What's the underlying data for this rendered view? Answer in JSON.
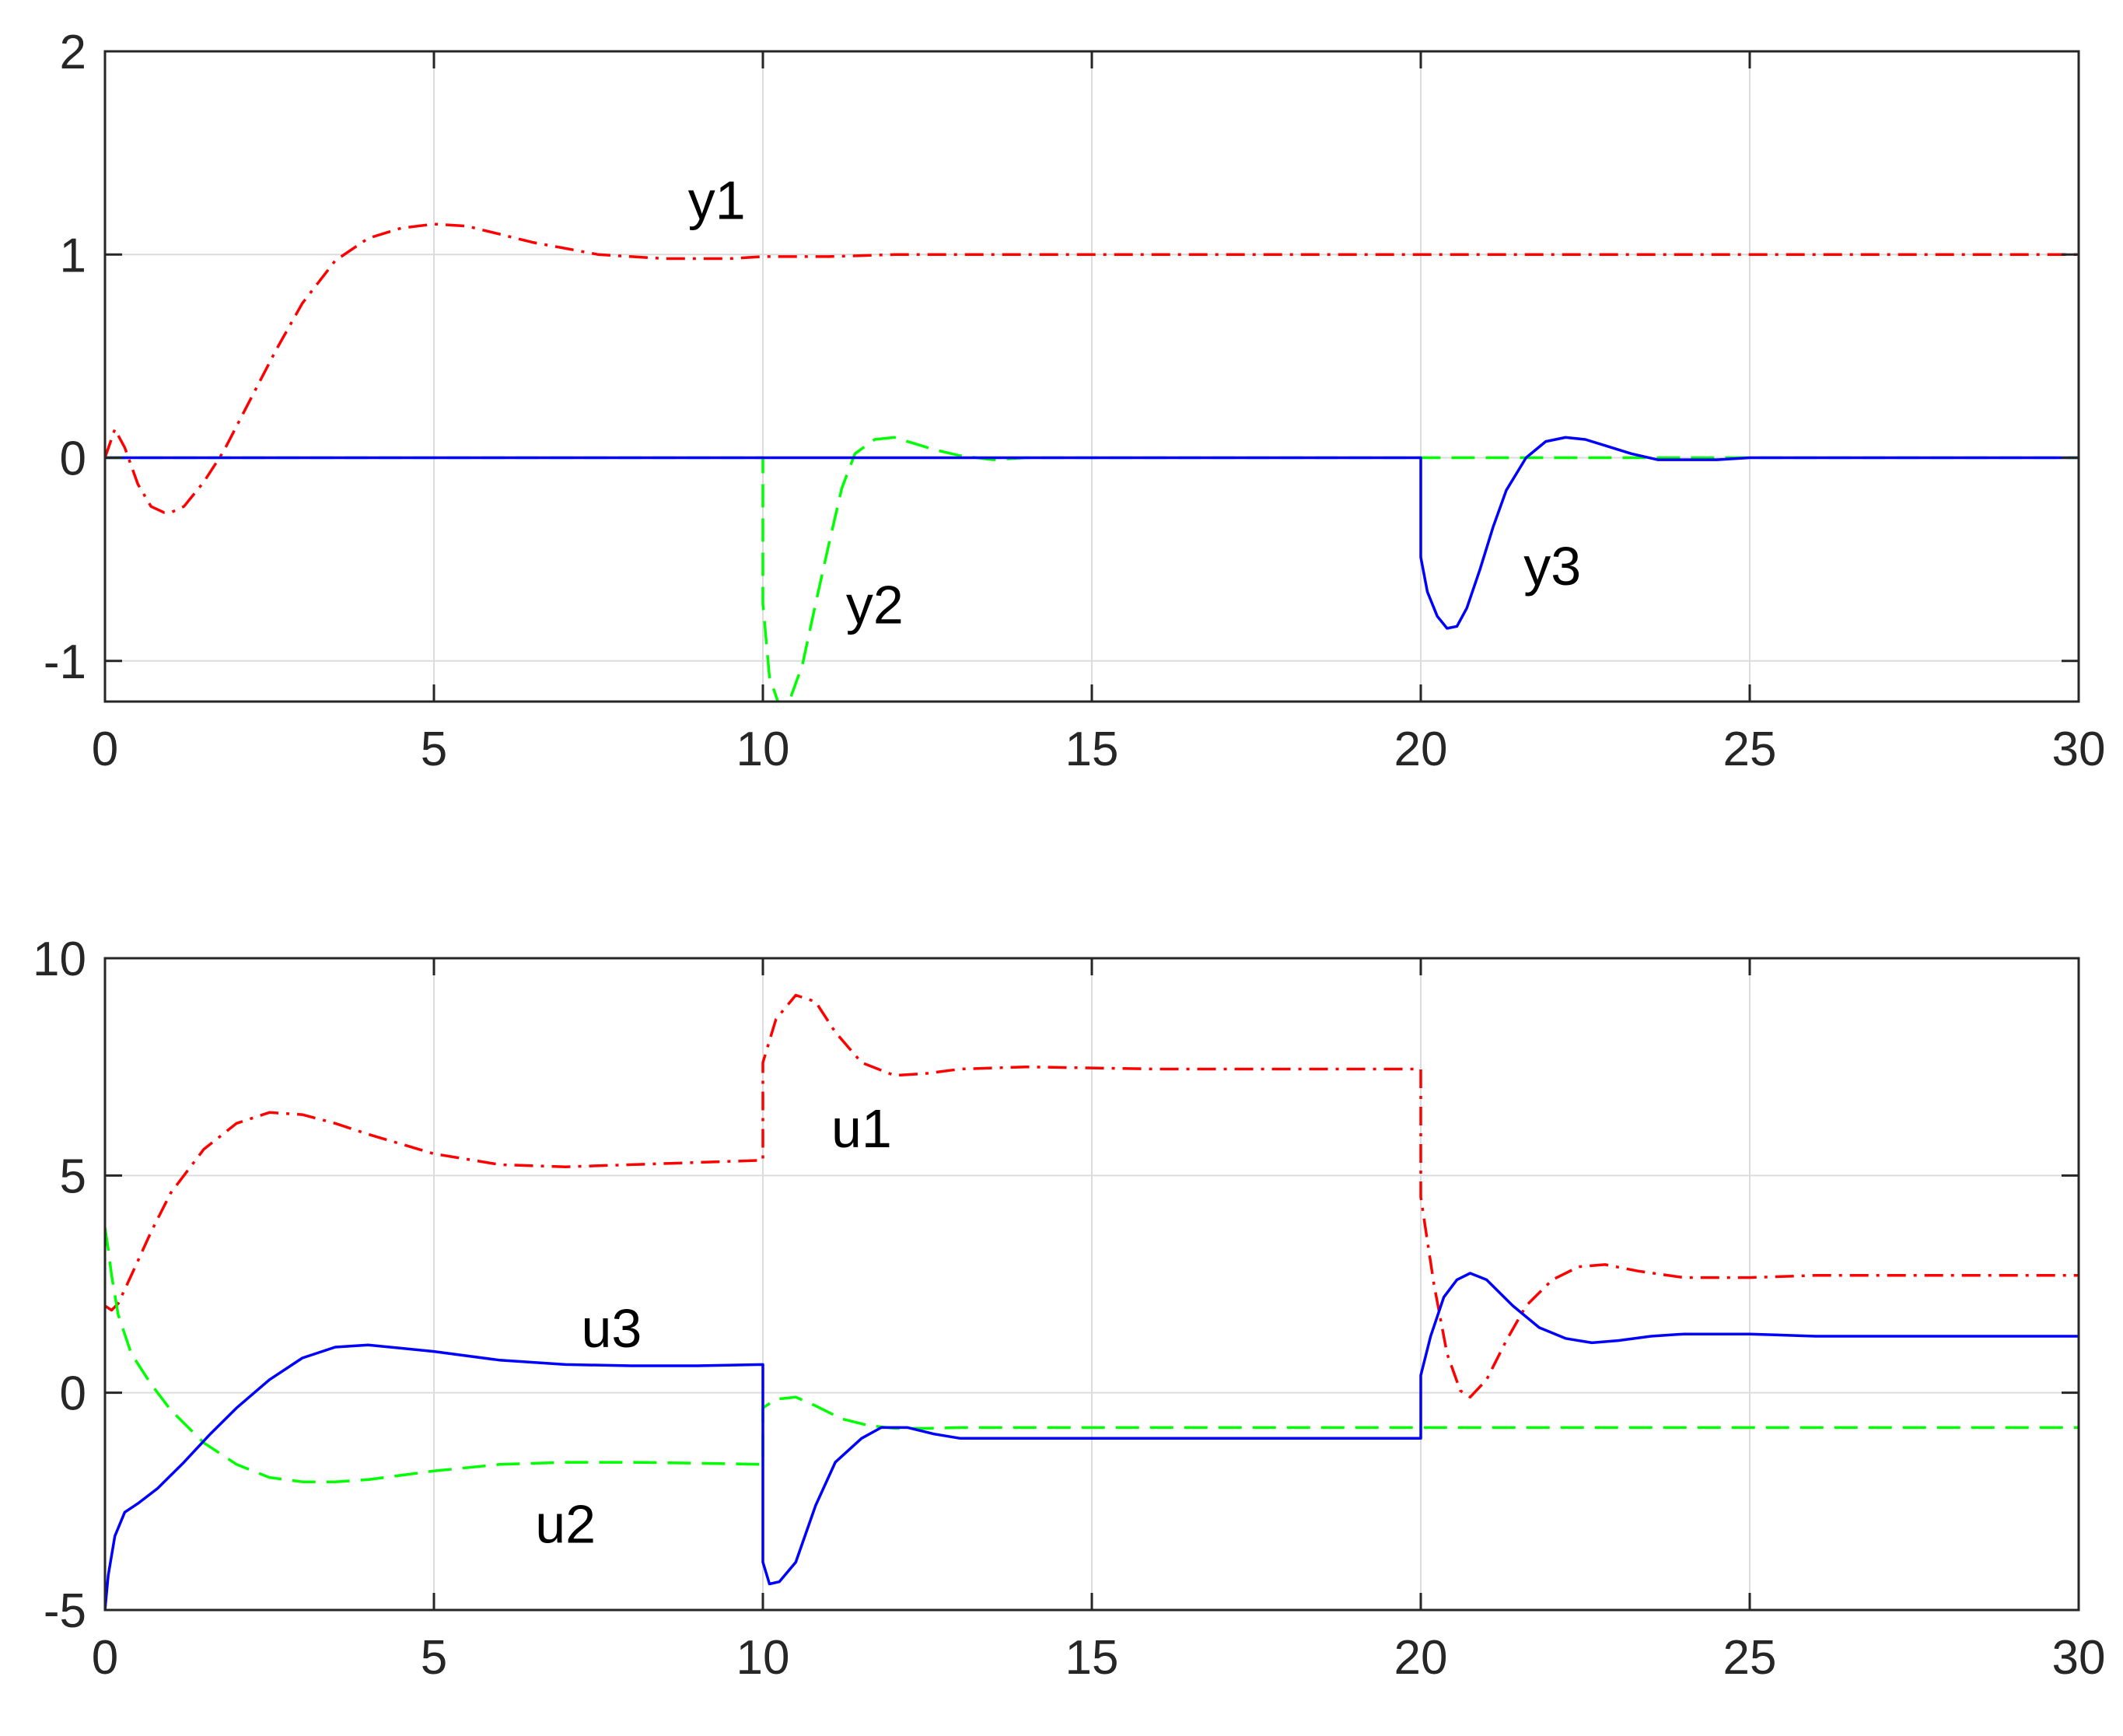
{
  "chart_data": [
    {
      "type": "line",
      "title": "",
      "xlabel": "",
      "ylabel": "",
      "xlim": [
        0,
        30
      ],
      "ylim": [
        -1.2,
        2
      ],
      "xticks": [
        "0",
        "5",
        "10",
        "15",
        "20",
        "25",
        "30"
      ],
      "yticks": [
        "-1",
        "0",
        "1",
        "2"
      ],
      "grid": true,
      "series": [
        {
          "name": "y1",
          "color": "#ff0000",
          "style": "dash-dot",
          "x": [
            0,
            0.15,
            0.3,
            0.5,
            0.7,
            0.9,
            1.0,
            1.2,
            1.5,
            1.8,
            2.2,
            2.6,
            3.0,
            3.5,
            4.0,
            4.5,
            5.0,
            5.5,
            6.0,
            6.5,
            7.0,
            7.5,
            8.0,
            8.5,
            9.0,
            9.5,
            10.0,
            11.0,
            12.0,
            13.0,
            14.0,
            16.0,
            20.0,
            25.0,
            30.0
          ],
          "values": [
            0,
            0.14,
            0.05,
            -0.13,
            -0.24,
            -0.27,
            -0.27,
            -0.24,
            -0.12,
            0.03,
            0.28,
            0.53,
            0.76,
            0.97,
            1.08,
            1.13,
            1.15,
            1.14,
            1.1,
            1.06,
            1.03,
            1.0,
            0.99,
            0.98,
            0.98,
            0.98,
            0.99,
            0.99,
            1.0,
            1.0,
            1.0,
            1.0,
            1.0,
            1.0,
            1.0
          ]
        },
        {
          "name": "y2",
          "color": "#00ff00",
          "style": "dashed",
          "x": [
            0,
            10.0,
            10.0,
            10.1,
            10.25,
            10.4,
            10.6,
            10.8,
            11.0,
            11.2,
            11.4,
            11.7,
            12.0,
            12.3,
            12.6,
            13.0,
            13.5,
            14.0,
            15.0,
            20.0,
            25.0,
            30.0
          ],
          "values": [
            0,
            0,
            -0.72,
            -1.08,
            -1.22,
            -1.2,
            -1.02,
            -0.72,
            -0.43,
            -0.15,
            0.02,
            0.09,
            0.1,
            0.07,
            0.04,
            0.01,
            -0.01,
            0,
            0,
            0,
            0,
            0
          ]
        },
        {
          "name": "y3",
          "color": "#0000ff",
          "style": "solid",
          "x": [
            0,
            20.0,
            20.0,
            20.1,
            20.25,
            20.4,
            20.55,
            20.7,
            20.9,
            21.1,
            21.3,
            21.6,
            21.9,
            22.2,
            22.5,
            22.8,
            23.2,
            23.6,
            24.0,
            24.5,
            25.0,
            26.0,
            27.0,
            28.0,
            30.0
          ],
          "values": [
            0,
            0,
            -0.49,
            -0.66,
            -0.78,
            -0.84,
            -0.83,
            -0.74,
            -0.55,
            -0.34,
            -0.16,
            0.0,
            0.08,
            0.1,
            0.09,
            0.06,
            0.02,
            -0.01,
            -0.01,
            -0.01,
            0.0,
            0.0,
            0.0,
            0.0,
            0.0
          ]
        }
      ],
      "annotations": [
        {
          "text": "y1",
          "x": 9.3,
          "y": 1.27
        },
        {
          "text": "y2",
          "x": 11.7,
          "y": -0.72
        },
        {
          "text": "y3",
          "x": 22.0,
          "y": -0.53
        }
      ]
    },
    {
      "type": "line",
      "title": "",
      "xlabel": "",
      "ylabel": "",
      "xlim": [
        0,
        30
      ],
      "ylim": [
        -5,
        10
      ],
      "xticks": [
        "0",
        "5",
        "10",
        "15",
        "20",
        "25",
        "30"
      ],
      "yticks": [
        "-5",
        "0",
        "5",
        "10"
      ],
      "grid": true,
      "series": [
        {
          "name": "u1",
          "color": "#ff0000",
          "style": "dash-dot",
          "x": [
            0,
            0.1,
            0.2,
            0.4,
            0.7,
            1.0,
            1.5,
            2.0,
            2.5,
            3.0,
            3.5,
            4.0,
            5.0,
            6.0,
            7.0,
            8.0,
            9.0,
            10.0,
            10.0,
            10.2,
            10.5,
            10.8,
            11.1,
            11.5,
            12.0,
            12.5,
            13.0,
            14.0,
            16.0,
            18.0,
            20.0,
            20.0,
            20.2,
            20.4,
            20.6,
            20.75,
            21.0,
            21.3,
            21.6,
            22.0,
            22.4,
            22.8,
            23.3,
            24.0,
            25.0,
            26.0,
            28.0,
            30.0
          ],
          "values": [
            2.0,
            1.9,
            2.05,
            2.7,
            3.7,
            4.6,
            5.6,
            6.2,
            6.45,
            6.4,
            6.2,
            5.95,
            5.5,
            5.25,
            5.2,
            5.25,
            5.3,
            5.35,
            7.6,
            8.6,
            9.15,
            9.0,
            8.3,
            7.6,
            7.3,
            7.35,
            7.45,
            7.5,
            7.45,
            7.45,
            7.45,
            4.5,
            2.5,
            0.9,
            0.05,
            -0.1,
            0.3,
            1.2,
            2.0,
            2.6,
            2.9,
            2.95,
            2.8,
            2.65,
            2.65,
            2.7,
            2.7,
            2.7
          ]
        },
        {
          "name": "u2",
          "color": "#00ff00",
          "style": "dashed",
          "x": [
            0,
            0.05,
            0.1,
            0.2,
            0.4,
            0.7,
            1.0,
            1.5,
            2.0,
            2.5,
            3.0,
            3.5,
            4.0,
            5.0,
            6.0,
            7.0,
            8.0,
            9.0,
            10.0,
            10.0,
            10.2,
            10.5,
            10.8,
            11.2,
            11.6,
            12.0,
            12.5,
            13.0,
            15.0,
            20.0,
            25.0,
            30.0
          ],
          "values": [
            3.8,
            3.3,
            2.7,
            1.8,
            0.9,
            0.2,
            -0.4,
            -1.15,
            -1.65,
            -1.95,
            -2.05,
            -2.05,
            -2.0,
            -1.8,
            -1.65,
            -1.6,
            -1.6,
            -1.62,
            -1.65,
            -0.35,
            -0.15,
            -0.1,
            -0.3,
            -0.6,
            -0.75,
            -0.82,
            -0.82,
            -0.8,
            -0.8,
            -0.8,
            -0.8,
            -0.8
          ]
        },
        {
          "name": "u3",
          "color": "#0000ff",
          "style": "solid",
          "x": [
            0,
            0.05,
            0.15,
            0.3,
            0.5,
            0.8,
            1.2,
            1.6,
            2.0,
            2.5,
            3.0,
            3.5,
            4.0,
            5.0,
            6.0,
            7.0,
            8.0,
            9.0,
            10.0,
            10.0,
            10.1,
            10.25,
            10.5,
            10.8,
            11.1,
            11.5,
            11.8,
            12.2,
            12.6,
            13.0,
            14.0,
            16.0,
            18.0,
            20.0,
            20.0,
            20.15,
            20.35,
            20.55,
            20.75,
            21.0,
            21.4,
            21.8,
            22.2,
            22.6,
            23.0,
            23.5,
            24.0,
            25.0,
            26.0,
            28.0,
            30.0
          ],
          "values": [
            -5.0,
            -4.2,
            -3.3,
            -2.75,
            -2.55,
            -2.2,
            -1.6,
            -0.95,
            -0.35,
            0.3,
            0.8,
            1.05,
            1.1,
            0.95,
            0.75,
            0.65,
            0.62,
            0.62,
            0.65,
            -3.9,
            -4.4,
            -4.35,
            -3.9,
            -2.6,
            -1.6,
            -1.05,
            -0.8,
            -0.8,
            -0.95,
            -1.05,
            -1.05,
            -1.05,
            -1.05,
            -1.05,
            0.4,
            1.3,
            2.2,
            2.6,
            2.75,
            2.6,
            2.0,
            1.5,
            1.25,
            1.15,
            1.2,
            1.3,
            1.35,
            1.35,
            1.3,
            1.3,
            1.3
          ]
        }
      ],
      "annotations": [
        {
          "text": "u1",
          "x": 11.5,
          "y": 6.1
        },
        {
          "text": "u2",
          "x": 7.0,
          "y": -3.0
        },
        {
          "text": "u3",
          "x": 7.7,
          "y": 1.5
        }
      ]
    }
  ]
}
